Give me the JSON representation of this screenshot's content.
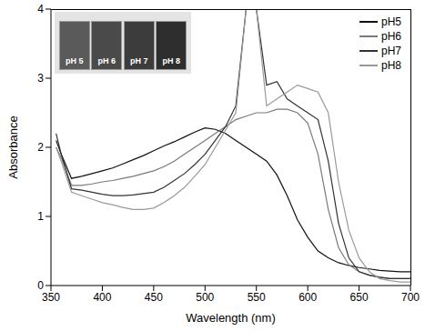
{
  "chart_data": {
    "type": "line",
    "x_label": "Wavelength (nm)",
    "y_label": "Absorbance",
    "x": [
      355,
      360,
      370,
      380,
      390,
      400,
      410,
      420,
      430,
      440,
      450,
      460,
      470,
      480,
      490,
      500,
      510,
      520,
      530,
      540,
      550,
      560,
      570,
      580,
      590,
      600,
      610,
      620,
      630,
      640,
      650,
      660,
      670,
      680,
      690,
      700
    ],
    "series": [
      {
        "name": "pH5",
        "color": "#111111",
        "values": [
          2.1,
          1.9,
          1.55,
          1.58,
          1.62,
          1.66,
          1.7,
          1.76,
          1.82,
          1.88,
          1.95,
          2.02,
          2.08,
          2.15,
          2.22,
          2.28,
          2.26,
          2.2,
          2.1,
          2.0,
          1.9,
          1.8,
          1.6,
          1.3,
          0.95,
          0.7,
          0.5,
          0.4,
          0.33,
          0.29,
          0.26,
          0.24,
          0.22,
          0.21,
          0.2,
          0.2
        ]
      },
      {
        "name": "pH6",
        "color": "#7a7a7a",
        "values": [
          2.0,
          1.85,
          1.45,
          1.45,
          1.47,
          1.5,
          1.52,
          1.55,
          1.58,
          1.62,
          1.66,
          1.72,
          1.8,
          1.9,
          2.0,
          2.1,
          2.2,
          2.3,
          2.4,
          2.45,
          2.5,
          2.5,
          2.55,
          2.55,
          2.5,
          2.35,
          1.9,
          1.1,
          0.55,
          0.3,
          0.2,
          0.15,
          0.12,
          0.1,
          0.1,
          0.1
        ]
      },
      {
        "name": "pH7",
        "color": "#333333",
        "values": [
          2.2,
          1.9,
          1.4,
          1.38,
          1.35,
          1.32,
          1.3,
          1.3,
          1.31,
          1.33,
          1.35,
          1.42,
          1.52,
          1.62,
          1.75,
          1.9,
          2.1,
          2.3,
          2.6,
          4.0,
          4.0,
          2.9,
          2.95,
          2.7,
          2.6,
          2.5,
          2.4,
          1.8,
          0.9,
          0.4,
          0.2,
          0.15,
          0.12,
          0.1,
          0.1,
          0.1
        ]
      },
      {
        "name": "pH8",
        "color": "#999999",
        "values": [
          2.0,
          1.8,
          1.35,
          1.3,
          1.25,
          1.2,
          1.17,
          1.13,
          1.1,
          1.1,
          1.12,
          1.2,
          1.3,
          1.42,
          1.58,
          1.75,
          2.0,
          2.25,
          2.5,
          4.0,
          4.0,
          2.6,
          2.7,
          2.8,
          2.9,
          2.85,
          2.8,
          2.5,
          1.5,
          0.8,
          0.4,
          0.2,
          0.1,
          0.07,
          0.05,
          0.05
        ]
      }
    ],
    "xlim": [
      350,
      700
    ],
    "xticks": [
      350,
      400,
      450,
      500,
      550,
      600,
      650,
      700
    ],
    "ylim": [
      0,
      4
    ],
    "yticks": [
      0,
      1,
      2,
      3,
      4
    ],
    "legend": "upper right",
    "grid": false,
    "inset": {
      "labels": [
        "pH 5",
        "pH 6",
        "pH 7",
        "pH 8"
      ],
      "colors": [
        "#5a5a5a",
        "#4a4a4a",
        "#3c3c3c",
        "#2e2e2e"
      ]
    }
  }
}
